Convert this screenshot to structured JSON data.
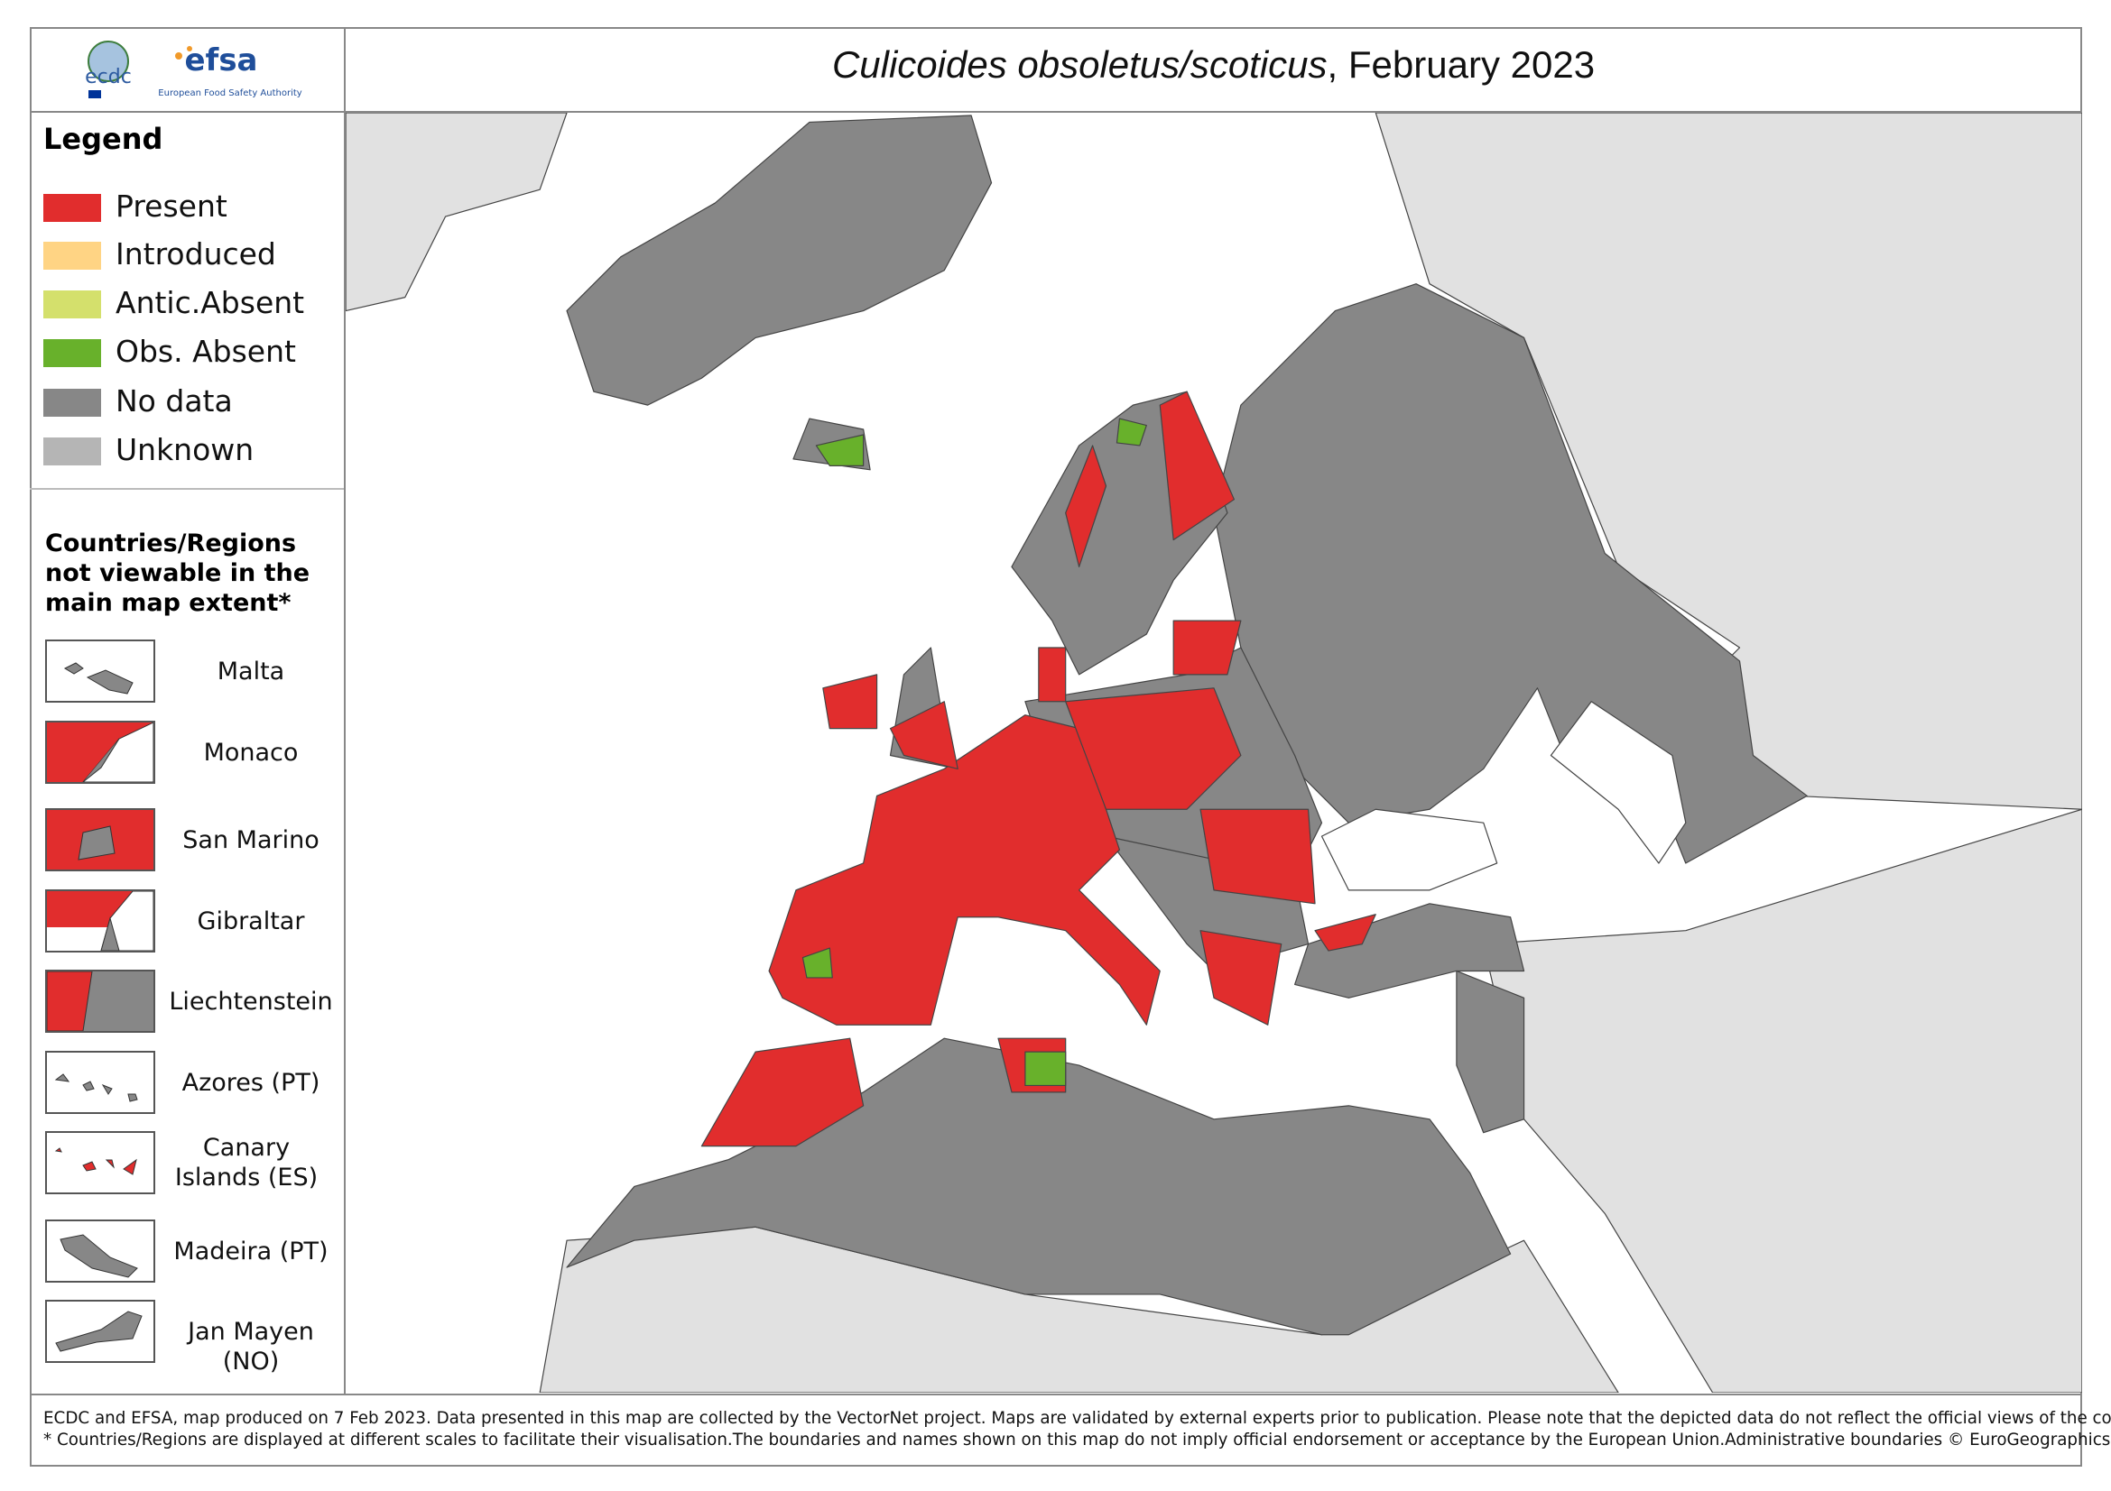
{
  "header": {
    "title_italic": "Culicoides obsoletus/scoticus",
    "title_rest": ", February 2023",
    "logo_ecdc": "ecdc",
    "logo_efsa": "efsa",
    "logo_efsa_sub": "European Food Safety Authority"
  },
  "legend": {
    "title": "Legend",
    "items": [
      {
        "label": "Present",
        "color": "#e12d2d"
      },
      {
        "label": "Introduced",
        "color": "#ffd484"
      },
      {
        "label": "Antic.Absent",
        "color": "#d4e06c"
      },
      {
        "label": "Obs. Absent",
        "color": "#68b12b"
      },
      {
        "label": "No data",
        "color": "#878787"
      },
      {
        "label": "Unknown",
        "color": "#b5b5b5"
      }
    ]
  },
  "insets": {
    "title": "Countries/Regions not viewable in the main map extent*",
    "items": [
      "Malta",
      "Monaco",
      "San Marino",
      "Gibraltar",
      "Liechtenstein",
      "Azores (PT)",
      "Canary Islands (ES)",
      "Madeira (PT)",
      "Jan Mayen (NO)"
    ]
  },
  "footer": {
    "lines": [
      "ECDC and EFSA, map produced on 7 Feb 2023. Data presented in this map are collected by the VectorNet project. Maps are validated by external experts prior to publication. Please note that the depicted data do not reflect the official views of the countries.",
      "* Countries/Regions are displayed at different scales to facilitate their visualisation.The boundaries and names shown on this map do not imply official endorsement or acceptance by the European Union.Administrative boundaries © EuroGeographics, UNFAO."
    ]
  }
}
